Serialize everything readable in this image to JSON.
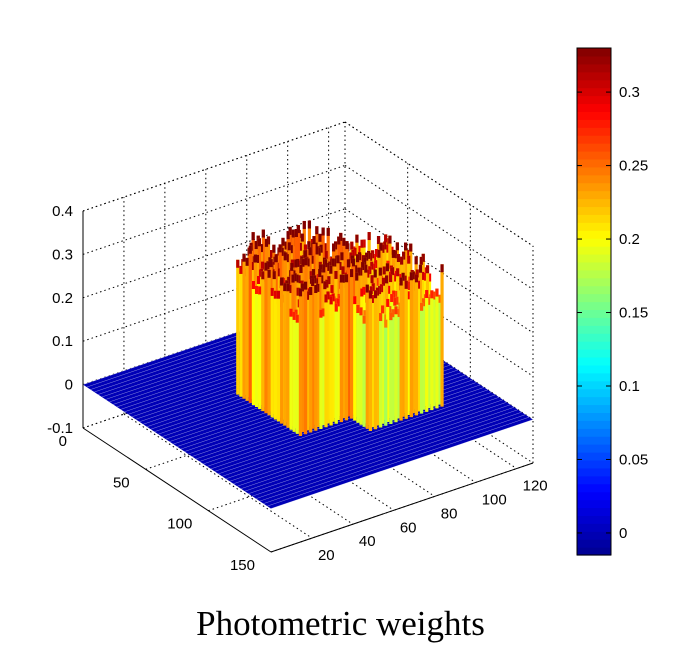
{
  "chart_data": {
    "type": "surface3d",
    "title": "Photometric weights",
    "grid": true,
    "axes": {
      "x": {
        "range": [
          0,
          150
        ],
        "ticks": [
          "0",
          "50",
          "100",
          "150"
        ]
      },
      "y": {
        "range": [
          0,
          128
        ],
        "ticks": [
          "20",
          "40",
          "60",
          "80",
          "100",
          "120"
        ]
      },
      "z": {
        "range": [
          -0.1,
          0.4
        ],
        "ticks": [
          "-0.1",
          "0",
          "0.1",
          "0.2",
          "0.3",
          "0.4"
        ]
      }
    },
    "surface": {
      "description_of_values": "weight ~0 on a flat base plane with two raised plateaus of height ~0.3-0.35",
      "base_level": 0.0,
      "plateaus": [
        {
          "x_range": [
            50,
            100
          ],
          "y_range": [
            45,
            80
          ],
          "height": 0.34
        },
        {
          "x_range": [
            65,
            115
          ],
          "y_range": [
            70,
            105
          ],
          "height": 0.31
        }
      ]
    },
    "colorbar": {
      "range": [
        -0.015,
        0.33
      ],
      "ticks": [
        "0",
        "0.05",
        "0.1",
        "0.15",
        "0.2",
        "0.25",
        "0.3"
      ],
      "colormap": "jet",
      "colors": [
        "#00008f",
        "#0000ff",
        "#0080ff",
        "#00ffff",
        "#80ff80",
        "#ffff00",
        "#ff8000",
        "#ff0000",
        "#800000"
      ]
    }
  }
}
